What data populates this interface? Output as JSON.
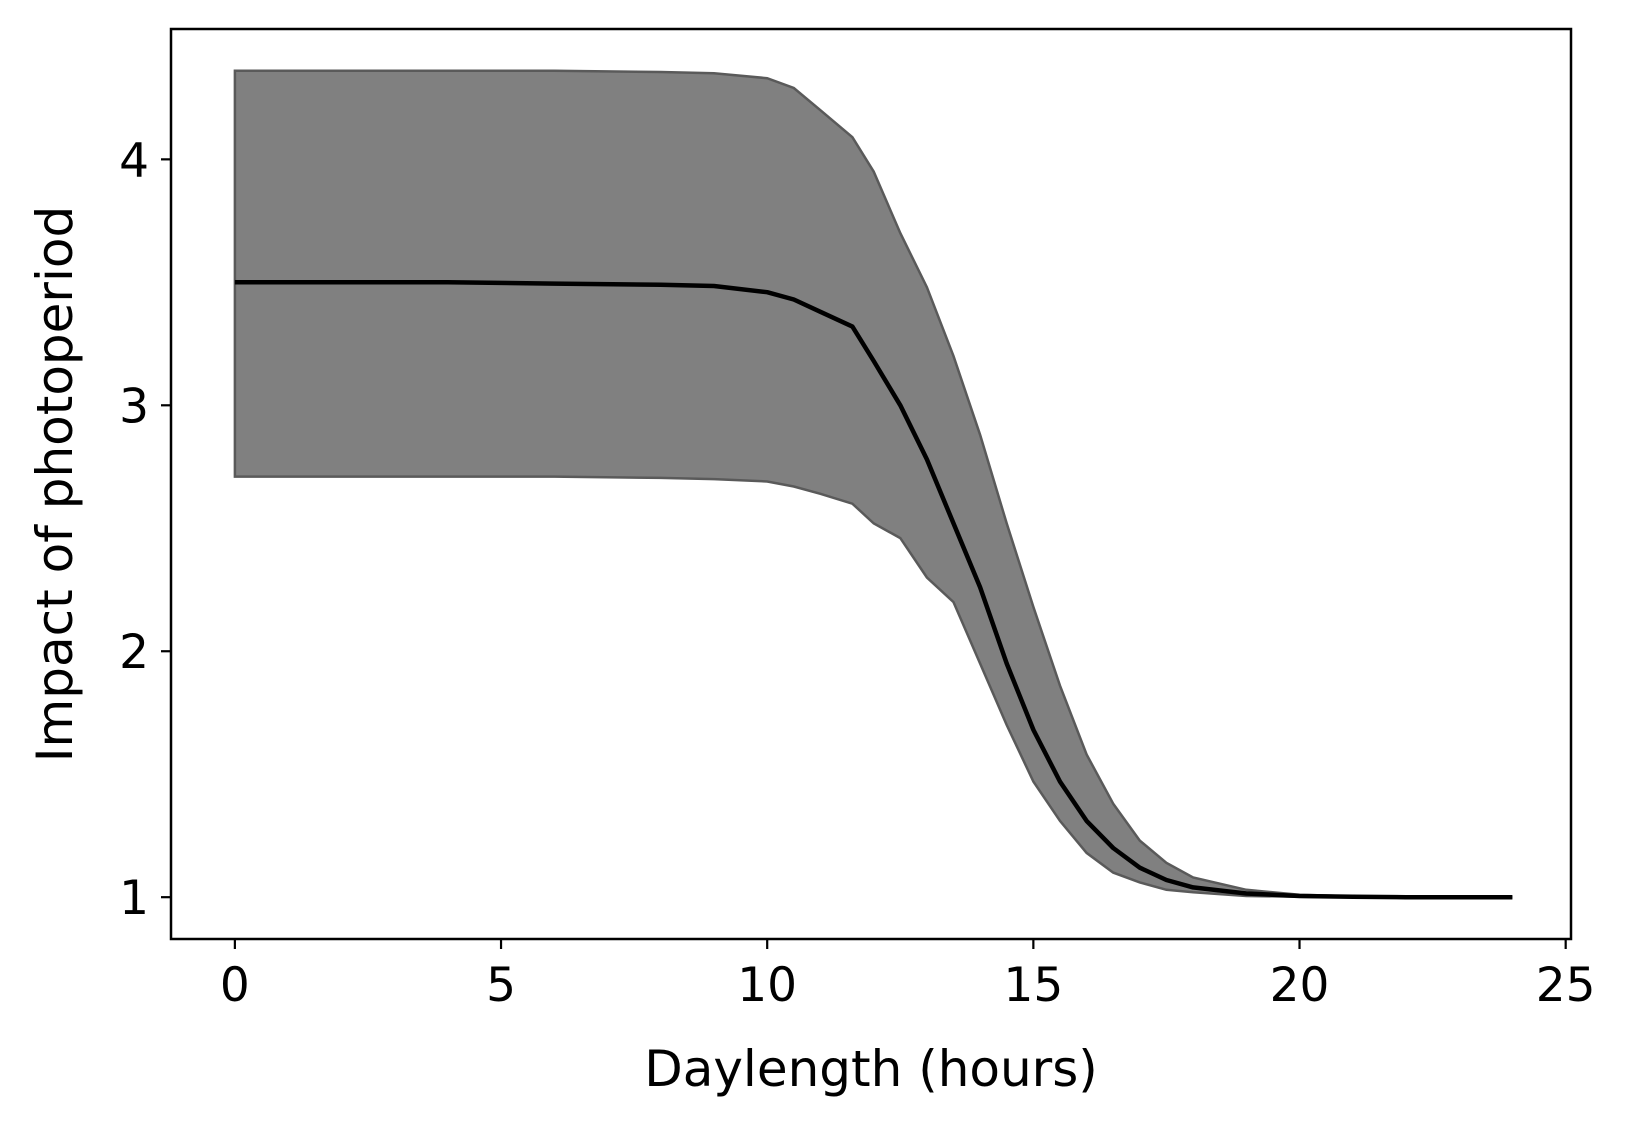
{
  "chart_data": {
    "type": "line",
    "title": "",
    "xlabel": "Daylength (hours)",
    "ylabel": "Impact of photoperiod",
    "xlim": [
      -1.2,
      25.1
    ],
    "ylim": [
      0.83,
      4.53
    ],
    "xticks": [
      0,
      5,
      10,
      15,
      20,
      25
    ],
    "yticks": [
      1,
      2,
      3,
      4
    ],
    "grid": false,
    "legend": "none",
    "colors": {
      "line": "#000000",
      "band": "#808080",
      "band_edge": "#5a5a5a"
    },
    "x": [
      0,
      2,
      4,
      6,
      8,
      9,
      10,
      10.5,
      11,
      11.6,
      12,
      12.5,
      13,
      13.5,
      14,
      14.5,
      15,
      15.5,
      16,
      16.5,
      17,
      17.5,
      18,
      19,
      20,
      21,
      22,
      23,
      24
    ],
    "y": [
      3.5,
      3.5,
      3.5,
      3.495,
      3.49,
      3.485,
      3.46,
      3.43,
      3.38,
      3.32,
      3.18,
      3.0,
      2.78,
      2.52,
      2.26,
      1.95,
      1.68,
      1.47,
      1.31,
      1.2,
      1.12,
      1.07,
      1.04,
      1.015,
      1.005,
      1.002,
      1.0,
      1.0,
      1.0
    ],
    "upper": [
      4.36,
      4.36,
      4.36,
      4.36,
      4.355,
      4.35,
      4.33,
      4.29,
      4.2,
      4.09,
      3.95,
      3.7,
      3.48,
      3.2,
      2.88,
      2.52,
      2.18,
      1.86,
      1.58,
      1.38,
      1.23,
      1.14,
      1.08,
      1.03,
      1.01,
      1.004,
      1.001,
      1.0,
      1.0
    ],
    "lower": [
      2.71,
      2.71,
      2.71,
      2.71,
      2.705,
      2.7,
      2.69,
      2.67,
      2.64,
      2.6,
      2.52,
      2.46,
      2.3,
      2.2,
      1.95,
      1.7,
      1.47,
      1.31,
      1.18,
      1.1,
      1.06,
      1.03,
      1.02,
      1.005,
      1.002,
      1.0,
      1.0,
      1.0,
      1.0
    ]
  }
}
